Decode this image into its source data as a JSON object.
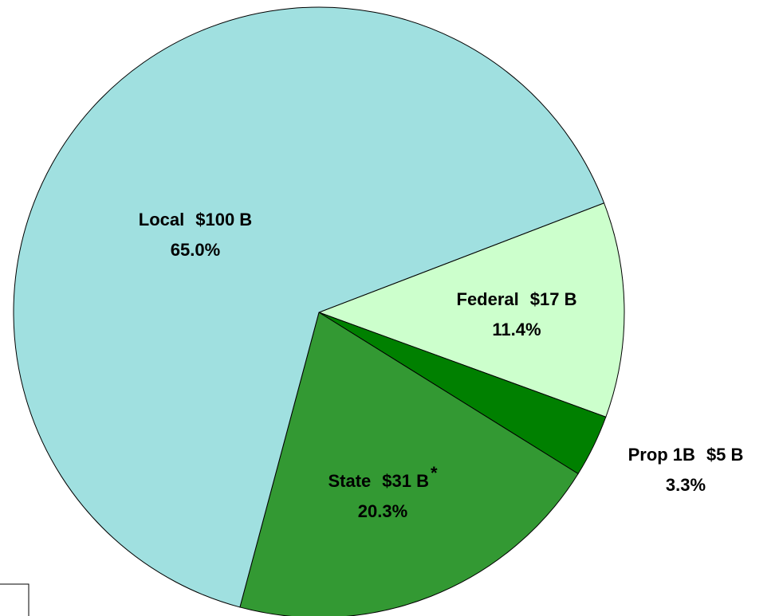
{
  "chart_data": {
    "type": "pie",
    "categories": [
      "Federal",
      "Prop 1B",
      "State",
      "Local"
    ],
    "values": [
      11.4,
      3.3,
      20.3,
      65.0
    ],
    "value_labels": [
      "11.4%",
      "3.3%",
      "20.3%",
      "65.0%"
    ],
    "amounts": [
      17,
      5,
      31,
      100
    ],
    "amount_labels": [
      "$17 B",
      "$5 B",
      "$31 B",
      "$100 B"
    ],
    "annotation": "*",
    "colors": [
      "#ccffcc",
      "#008000",
      "#339933",
      "#a0e0e0"
    ]
  }
}
